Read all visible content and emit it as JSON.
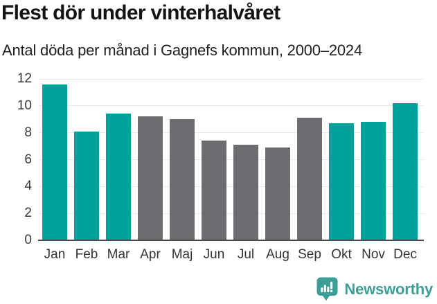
{
  "header": {
    "title": "Flest dör under vinterhalvåret",
    "subtitle": "Antal döda per månad i Gagnefs kommun, 2000–2024"
  },
  "chart_data": {
    "type": "bar",
    "title": "Flest dör under vinterhalvåret",
    "subtitle": "Antal döda per månad i Gagnefs kommun, 2000–2024",
    "categories": [
      "Jan",
      "Feb",
      "Mar",
      "Apr",
      "Maj",
      "Jun",
      "Jul",
      "Aug",
      "Sep",
      "Okt",
      "Nov",
      "Dec"
    ],
    "values": [
      11.6,
      8.1,
      9.4,
      9.2,
      9.0,
      7.4,
      7.1,
      6.9,
      9.1,
      8.7,
      8.8,
      10.2
    ],
    "bar_colors": [
      "teal",
      "teal",
      "teal",
      "gray",
      "gray",
      "gray",
      "gray",
      "gray",
      "gray",
      "teal",
      "teal",
      "teal"
    ],
    "palette": {
      "teal": "#00A19A",
      "gray": "#6E6C70"
    },
    "xlabel": "",
    "ylabel": "",
    "ylim": [
      0,
      12
    ],
    "yticks": [
      0,
      2,
      4,
      6,
      8,
      10,
      12
    ],
    "grid": true,
    "grid_color": "#E7E7E7",
    "axis_color": "#4A4A4A",
    "legend": false
  },
  "footer": {
    "brand": "Newsworthy",
    "brand_color": "#3B9E97",
    "logo_icon": "newsworthy-speech-bubble-bar-chart-icon"
  }
}
